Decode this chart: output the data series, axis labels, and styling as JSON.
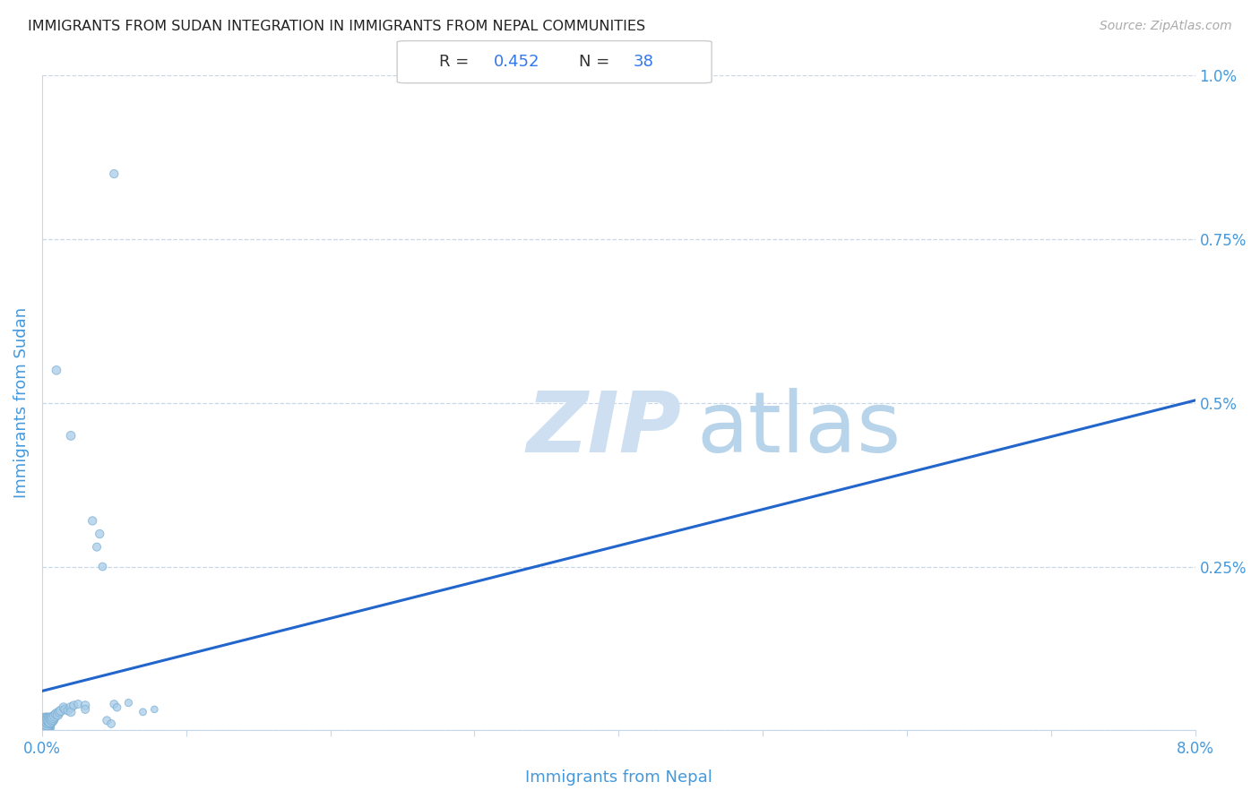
{
  "title": "IMMIGRANTS FROM SUDAN INTEGRATION IN IMMIGRANTS FROM NEPAL COMMUNITIES",
  "source": "Source: ZipAtlas.com",
  "xlabel": "Immigrants from Nepal",
  "ylabel": "Immigrants from Sudan",
  "R_text": "0.452",
  "N_text": "38",
  "scatter_color": "#a8cce8",
  "scatter_edge_color": "#7aafd4",
  "line_color": "#2266cc",
  "watermark_zip_color": "#cde0f0",
  "watermark_atlas_color": "#b8d4ea",
  "grid_color": "#c8d8e8",
  "title_color": "#222222",
  "axis_label_color": "#4499dd",
  "tick_label_color": "#4499dd",
  "ann_text_color": "#333333",
  "ann_blue_color": "#3377ee",
  "figsize": [
    14.06,
    8.92
  ],
  "dpi": 100,
  "xlim": [
    0.0,
    0.08
  ],
  "ylim": [
    0.0,
    0.01
  ],
  "regression_intercept": 0.0006,
  "regression_slope": 0.0555,
  "scatter_x": [
    5e-05,
    8e-05,
    0.0001,
    0.00012,
    0.00015,
    0.0002,
    0.00022,
    0.00025,
    0.0003,
    0.00035,
    0.0004,
    0.00045,
    0.0005,
    0.00055,
    0.0006,
    0.00065,
    0.0007,
    0.00075,
    0.0008,
    0.0009,
    0.001,
    0.0011,
    0.0012,
    0.0013,
    0.0015,
    0.0016,
    0.0018,
    0.002,
    0.002,
    0.0022,
    0.0025,
    0.003,
    0.003,
    0.005,
    0.0052,
    0.006,
    0.007,
    0.0078
  ],
  "scatter_y": [
    5e-05,
    8e-05,
    0.0001,
    8e-05,
    0.0001,
    0.00012,
    0.0001,
    0.00012,
    0.00015,
    0.00012,
    0.00015,
    0.00014,
    0.00016,
    0.00015,
    0.00014,
    0.00018,
    0.00016,
    0.00018,
    0.0002,
    0.00022,
    0.00025,
    0.00024,
    0.00028,
    0.0003,
    0.00035,
    0.00032,
    0.0003,
    0.00035,
    0.00028,
    0.00038,
    0.0004,
    0.00038,
    0.00032,
    0.0004,
    0.00035,
    0.00042,
    0.00028,
    0.00032
  ],
  "scatter_sizes": [
    350,
    300,
    280,
    250,
    220,
    200,
    180,
    160,
    150,
    140,
    130,
    120,
    110,
    100,
    95,
    90,
    85,
    80,
    75,
    70,
    65,
    60,
    58,
    55,
    50,
    48,
    45,
    55,
    50,
    45,
    42,
    48,
    42,
    40,
    38,
    35,
    32,
    30
  ],
  "extra_points_x": [
    0.005,
    0.001,
    0.002,
    0.0035,
    0.0038,
    0.004,
    0.0042,
    0.0045,
    0.0048
  ],
  "extra_points_y": [
    0.0085,
    0.0055,
    0.0045,
    0.0032,
    0.0028,
    0.003,
    0.0025,
    0.00015,
    0.0001
  ],
  "extra_sizes": [
    45,
    48,
    50,
    45,
    42,
    45,
    40,
    42,
    40
  ]
}
